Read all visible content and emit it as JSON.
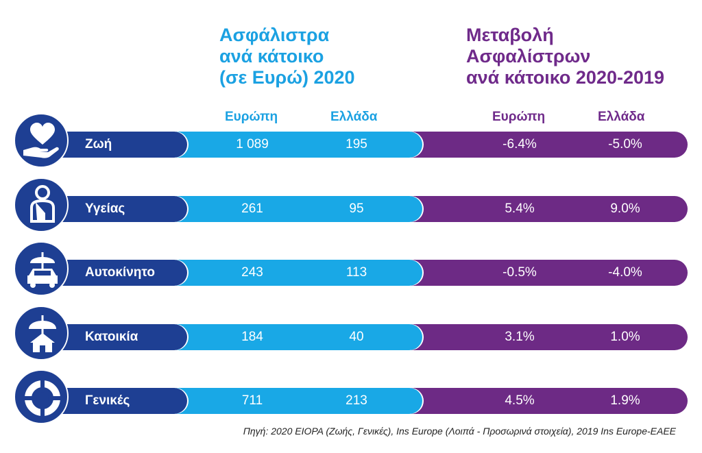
{
  "header_left": [
    "Ασφάλιστρα",
    "ανά κάτοικο",
    "(σε Ευρώ) 2020"
  ],
  "header_right": [
    "Μεταβολή",
    "Ασφαλίστρων",
    "ανά κάτοικο 2020-2019"
  ],
  "columns": {
    "premium_europe": "Ευρώπη",
    "premium_greece": "Ελλάδα",
    "change_europe": "Ευρώπη",
    "change_greece": "Ελλάδα"
  },
  "rows": [
    {
      "label": "Ζωή",
      "icon": "heart-hand-icon",
      "premium_europe": "1 089",
      "premium_greece": "195",
      "change_europe": "-6.4%",
      "change_greece": "-5.0%"
    },
    {
      "label": "Υγείας",
      "icon": "injured-person-icon",
      "premium_europe": "261",
      "premium_greece": "95",
      "change_europe": "5.4%",
      "change_greece": "9.0%"
    },
    {
      "label": "Αυτοκίνητο",
      "icon": "umbrella-car-icon",
      "premium_europe": "243",
      "premium_greece": "113",
      "change_europe": "-0.5%",
      "change_greece": "-4.0%"
    },
    {
      "label": "Κατοικία",
      "icon": "umbrella-house-icon",
      "premium_europe": "184",
      "premium_greece": "40",
      "change_europe": "3.1%",
      "change_greece": "1.0%"
    },
    {
      "label": "Γενικές",
      "icon": "lifebuoy-icon",
      "premium_europe": "711",
      "premium_greece": "213",
      "change_europe": "4.5%",
      "change_greece": "1.9%"
    }
  ],
  "source": "Πηγή: 2020 EIOPA (Ζωής, Γενικές), Ins Europe (Λοιπά - Προσωρινά στοιχεία), 2019 Ins Europe-EAEE",
  "colors": {
    "blue": "#19a8e6",
    "navy": "#1e3f93",
    "purple": "#6d2a85"
  }
}
